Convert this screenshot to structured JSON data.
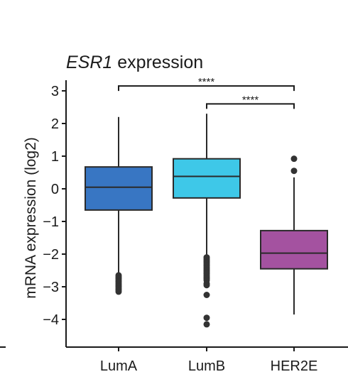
{
  "chart_data": {
    "type": "box",
    "title_gene": "ESR1",
    "title_rest": " expression",
    "xlabel": "",
    "ylabel": "mRNA expression (log2)",
    "ylim": [
      -4.8,
      3.3
    ],
    "yticks": [
      3,
      2,
      1,
      0,
      -1,
      -2,
      -3,
      -4
    ],
    "ytick_labels": [
      "3",
      "2",
      "1",
      "0",
      "−1",
      "−2",
      "−3",
      "−4"
    ],
    "categories": [
      "LumA",
      "LumB",
      "HER2E"
    ],
    "colors": [
      "#3876c3",
      "#3ec8e8",
      "#a452a0"
    ],
    "boxes": [
      {
        "name": "LumA",
        "whisker_low": -2.6,
        "q1": -0.65,
        "median": 0.05,
        "q3": 0.67,
        "whisker_high": 2.2,
        "outliers": [
          -2.65,
          -2.7,
          -2.75,
          -2.8,
          -2.85,
          -2.9,
          -2.95,
          -3.0,
          -3.05,
          -3.1,
          -3.15
        ]
      },
      {
        "name": "LumB",
        "whisker_low": -2.05,
        "q1": -0.28,
        "median": 0.38,
        "q3": 0.92,
        "whisker_high": 2.3,
        "outliers": [
          -2.1,
          -2.15,
          -2.2,
          -2.25,
          -2.3,
          -2.35,
          -2.4,
          -2.45,
          -2.5,
          -2.55,
          -2.6,
          -2.65,
          -2.7,
          -2.75,
          -2.8,
          -2.9,
          -2.95,
          -3.25,
          -3.95,
          -4.15
        ]
      },
      {
        "name": "HER2E",
        "whisker_low": -3.85,
        "q1": -2.45,
        "median": -1.97,
        "q3": -1.28,
        "whisker_high": 0.35,
        "outliers": [
          0.55,
          0.92
        ]
      }
    ],
    "significance": [
      {
        "from": "LumA",
        "to": "HER2E",
        "label": "****",
        "y": 3.15
      },
      {
        "from": "LumB",
        "to": "HER2E",
        "label": "****",
        "y": 2.6
      }
    ],
    "grid": false,
    "legend": "none"
  }
}
